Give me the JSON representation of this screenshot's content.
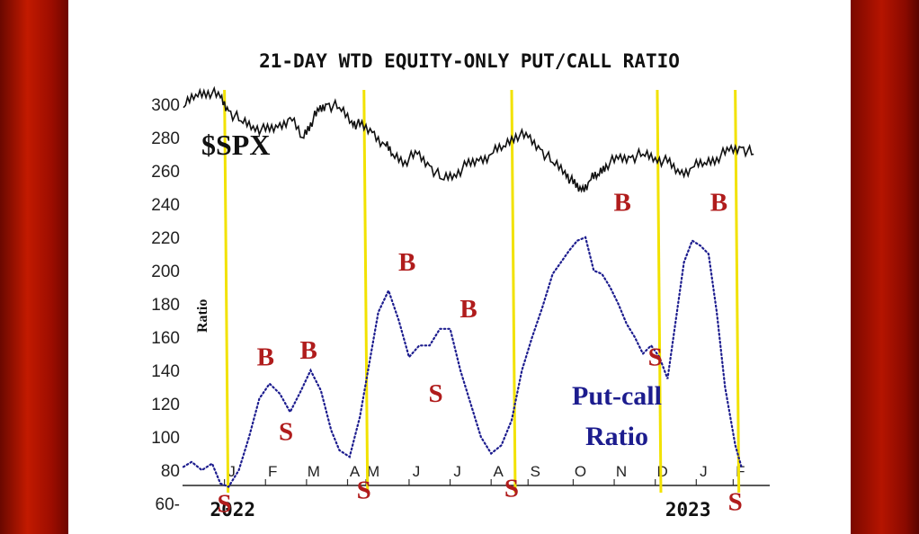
{
  "chart_data": {
    "type": "line",
    "title": "21-DAY WTD EQUITY-ONLY PUT/CALL RATIO",
    "ylabel": "Ratio",
    "ylim": [
      60,
      310
    ],
    "yticks": [
      "300",
      "280",
      "260",
      "240",
      "220",
      "200",
      "180",
      "160",
      "140",
      "120",
      "100",
      "80",
      "60"
    ],
    "xticks": [
      {
        "label": "J",
        "x": 1.0
      },
      {
        "label": "F",
        "x": 2.0
      },
      {
        "label": "M",
        "x": 3.0
      },
      {
        "label": "A",
        "x": 4.0
      },
      {
        "label": "M",
        "x": 4.45
      },
      {
        "label": "J",
        "x": 5.5
      },
      {
        "label": "J",
        "x": 6.5
      },
      {
        "label": "A",
        "x": 7.5
      },
      {
        "label": "S",
        "x": 8.4
      },
      {
        "label": "O",
        "x": 9.5
      },
      {
        "label": "N",
        "x": 10.5
      },
      {
        "label": "D",
        "x": 11.5
      },
      {
        "label": "J",
        "x": 12.5
      },
      {
        "label": "F",
        "x": 13.4
      }
    ],
    "xlim": [
      0,
      14.4
    ],
    "year_labels": [
      {
        "label": "2022",
        "x": 1.2
      },
      {
        "label": "2023",
        "x": 12.3
      }
    ],
    "series": [
      {
        "name": "$SPX",
        "style": "solid",
        "color": "#111111",
        "x": [
          0,
          0.3,
          0.6,
          0.9,
          1.1,
          1.4,
          1.7,
          2.0,
          2.3,
          2.6,
          2.9,
          3.1,
          3.3,
          3.5,
          3.8,
          4.1,
          4.3,
          4.6,
          4.9,
          5.1,
          5.4,
          5.7,
          6.0,
          6.3,
          6.6,
          6.9,
          7.2,
          7.5,
          7.8,
          8.1,
          8.4,
          8.7,
          9.0,
          9.3,
          9.5,
          9.7,
          9.9,
          10.1,
          10.3,
          10.6,
          10.9,
          11.2,
          11.5,
          11.8,
          12.1,
          12.4,
          12.7,
          13.0,
          13.3,
          13.6,
          13.9
        ],
        "y": [
          298,
          306,
          308,
          304,
          296,
          290,
          287,
          284,
          286,
          292,
          280,
          289,
          296,
          300,
          298,
          290,
          287,
          283,
          276,
          270,
          266,
          270,
          263,
          255,
          258,
          263,
          266,
          270,
          275,
          282,
          280,
          273,
          265,
          260,
          252,
          248,
          254,
          258,
          264,
          267,
          268,
          270,
          268,
          265,
          258,
          262,
          265,
          268,
          272,
          274,
          270
        ]
      },
      {
        "name": "Put-call Ratio",
        "style": "dotted",
        "color": "#1c1c8e",
        "x": [
          0,
          0.2,
          0.45,
          0.7,
          0.9,
          1.1,
          1.35,
          1.6,
          1.85,
          2.1,
          2.35,
          2.6,
          2.85,
          3.1,
          3.35,
          3.6,
          3.8,
          4.05,
          4.3,
          4.5,
          4.75,
          5.0,
          5.25,
          5.5,
          5.75,
          6.0,
          6.25,
          6.5,
          6.75,
          7.0,
          7.25,
          7.5,
          7.75,
          8.0,
          8.25,
          8.5,
          8.75,
          9.0,
          9.2,
          9.4,
          9.6,
          9.8,
          10.0,
          10.2,
          10.4,
          10.6,
          10.8,
          11.0,
          11.2,
          11.4,
          11.6,
          11.8,
          12.0,
          12.2,
          12.4,
          12.6,
          12.8,
          13.0,
          13.2,
          13.45,
          13.6
        ],
        "y": [
          82,
          85,
          80,
          84,
          72,
          70,
          80,
          100,
          123,
          132,
          126,
          115,
          127,
          140,
          128,
          104,
          92,
          88,
          112,
          140,
          175,
          188,
          170,
          148,
          155,
          155,
          165,
          165,
          140,
          120,
          100,
          90,
          95,
          110,
          140,
          160,
          178,
          198,
          205,
          212,
          218,
          220,
          200,
          198,
          190,
          180,
          168,
          160,
          150,
          155,
          148,
          135,
          170,
          205,
          218,
          215,
          210,
          175,
          130,
          95,
          82
        ]
      }
    ],
    "signals": [
      {
        "label": "B",
        "x": 2.0,
        "y": 143
      },
      {
        "label": "B",
        "x": 3.05,
        "y": 147
      },
      {
        "label": "S",
        "x": 2.5,
        "y": 98
      },
      {
        "label": "B",
        "x": 5.45,
        "y": 200
      },
      {
        "label": "B",
        "x": 6.95,
        "y": 172
      },
      {
        "label": "S",
        "x": 6.15,
        "y": 121
      },
      {
        "label": "B",
        "x": 10.7,
        "y": 236
      },
      {
        "label": "B",
        "x": 13.05,
        "y": 236
      },
      {
        "label": "S",
        "x": 11.5,
        "y": 143
      },
      {
        "label": "S",
        "x": 1.0,
        "y": 55
      },
      {
        "label": "S",
        "x": 4.4,
        "y": 63
      },
      {
        "label": "S",
        "x": 8.0,
        "y": 64
      },
      {
        "label": "S",
        "x": 13.45,
        "y": 56
      }
    ],
    "vertical_lines": {
      "color": "#f2e200",
      "x": [
        1.0,
        4.4,
        8.0,
        11.55,
        13.45
      ]
    },
    "annotations": {
      "spx": "$SPX",
      "pc_line1": "Put-call",
      "pc_line2": "Ratio"
    },
    "colors": {
      "buy": "#b01c1c",
      "sell": "#b01c1c",
      "spx": "#111111",
      "ratio": "#1c1c8e"
    }
  }
}
